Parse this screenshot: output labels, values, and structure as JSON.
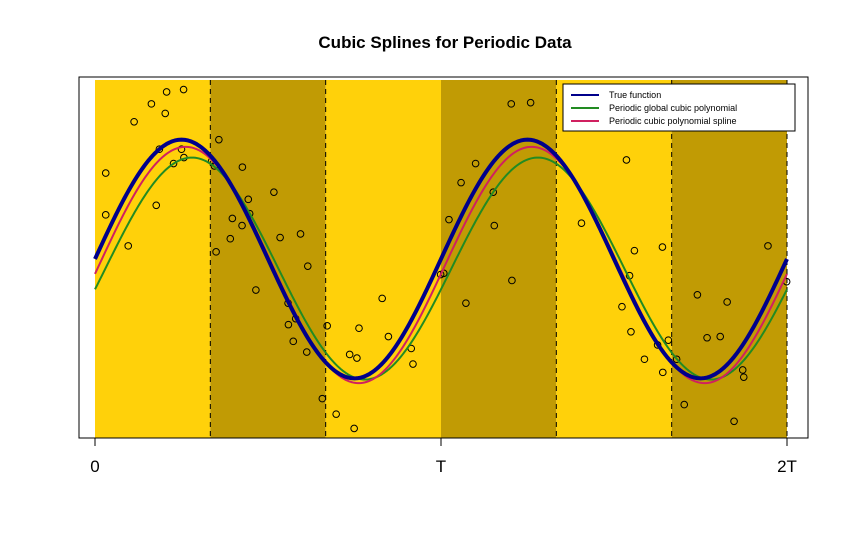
{
  "chart_data": {
    "type": "line",
    "title": "Cubic Splines for Periodic Data",
    "xlabel": "",
    "ylabel": "",
    "xlim": [
      0,
      2
    ],
    "ylim": [
      -1.5,
      1.5
    ],
    "x_ticks": [
      {
        "value": 0,
        "label": "0"
      },
      {
        "value": 1,
        "label": "T"
      },
      {
        "value": 2,
        "label": "2T"
      }
    ],
    "bands": [
      {
        "x0": 0.0,
        "x1": 0.3333,
        "color": "#FFD10A"
      },
      {
        "x0": 0.3333,
        "x1": 0.6667,
        "color": "#C19B04"
      },
      {
        "x0": 0.6667,
        "x1": 1.0,
        "color": "#FFD10A"
      },
      {
        "x0": 1.0,
        "x1": 1.3333,
        "color": "#C19B04"
      },
      {
        "x0": 1.3333,
        "x1": 1.6667,
        "color": "#FFD10A"
      },
      {
        "x0": 1.6667,
        "x1": 2.0,
        "color": "#C19B04"
      }
    ],
    "knots": [
      0.3333,
      0.6667,
      1.3333,
      1.6667,
      2.0
    ],
    "legend_position": "top-right",
    "series": [
      {
        "name": "True function",
        "color": "#00008B",
        "width": 4,
        "amp": 1.0,
        "phase": 0.0,
        "offset": 0.0
      },
      {
        "name": "Periodic global cubic polynomial",
        "color": "#228B22",
        "width": 2,
        "amp": 0.93,
        "phase": 0.03,
        "offset": -0.08
      },
      {
        "name": "Periodic cubic polynomial spline",
        "color": "#D02060",
        "width": 2,
        "amp": 0.99,
        "phase": 0.012,
        "offset": -0.05
      }
    ],
    "points": [
      [
        0.031,
        0.37
      ],
      [
        0.031,
        0.72
      ],
      [
        0.096,
        0.11
      ],
      [
        0.113,
        1.15
      ],
      [
        0.163,
        1.3
      ],
      [
        0.177,
        0.45
      ],
      [
        0.186,
        0.92
      ],
      [
        0.203,
        1.22
      ],
      [
        0.207,
        1.4
      ],
      [
        0.227,
        0.8
      ],
      [
        0.25,
        0.92
      ],
      [
        0.256,
        1.42
      ],
      [
        0.257,
        0.85
      ],
      [
        0.337,
        0.82
      ],
      [
        0.345,
        0.78
      ],
      [
        0.35,
        0.06
      ],
      [
        0.358,
        1.0
      ],
      [
        0.391,
        0.17
      ],
      [
        0.397,
        0.34
      ],
      [
        0.425,
        0.28
      ],
      [
        0.426,
        0.77
      ],
      [
        0.443,
        0.5
      ],
      [
        0.447,
        0.38
      ],
      [
        0.465,
        -0.26
      ],
      [
        0.517,
        0.56
      ],
      [
        0.535,
        0.18
      ],
      [
        0.558,
        -0.37
      ],
      [
        0.559,
        -0.55
      ],
      [
        0.573,
        -0.69
      ],
      [
        0.58,
        -0.5
      ],
      [
        0.594,
        0.21
      ],
      [
        0.612,
        -0.78
      ],
      [
        0.615,
        -0.06
      ],
      [
        0.657,
        -1.17
      ],
      [
        0.671,
        -0.56
      ],
      [
        0.697,
        -1.3
      ],
      [
        0.736,
        -0.8
      ],
      [
        0.749,
        -1.42
      ],
      [
        0.757,
        -0.83
      ],
      [
        0.763,
        -0.58
      ],
      [
        0.83,
        -0.33
      ],
      [
        0.848,
        -0.65
      ],
      [
        0.914,
        -0.75
      ],
      [
        0.919,
        -0.88
      ],
      [
        0.999,
        -0.13
      ],
      [
        1.008,
        -0.12
      ],
      [
        1.023,
        0.33
      ],
      [
        1.058,
        0.64
      ],
      [
        1.072,
        -0.37
      ],
      [
        1.1,
        0.8
      ],
      [
        1.151,
        0.56
      ],
      [
        1.154,
        0.28
      ],
      [
        1.203,
        1.3
      ],
      [
        1.205,
        -0.18
      ],
      [
        1.259,
        1.31
      ],
      [
        1.406,
        0.3
      ],
      [
        1.523,
        -0.4
      ],
      [
        1.536,
        0.83
      ],
      [
        1.545,
        -0.14
      ],
      [
        1.549,
        -0.61
      ],
      [
        1.559,
        0.07
      ],
      [
        1.588,
        -0.84
      ],
      [
        1.626,
        -0.72
      ],
      [
        1.64,
        0.1
      ],
      [
        1.641,
        -0.95
      ],
      [
        1.657,
        -0.68
      ],
      [
        1.681,
        -0.84
      ],
      [
        1.703,
        -1.22
      ],
      [
        1.741,
        -0.3
      ],
      [
        1.769,
        -0.66
      ],
      [
        1.807,
        -0.65
      ],
      [
        1.847,
        -1.36
      ],
      [
        1.827,
        -0.36
      ],
      [
        1.875,
        -0.99
      ],
      [
        1.872,
        -0.93
      ],
      [
        1.945,
        0.11
      ],
      [
        1.999,
        -0.19
      ]
    ]
  }
}
